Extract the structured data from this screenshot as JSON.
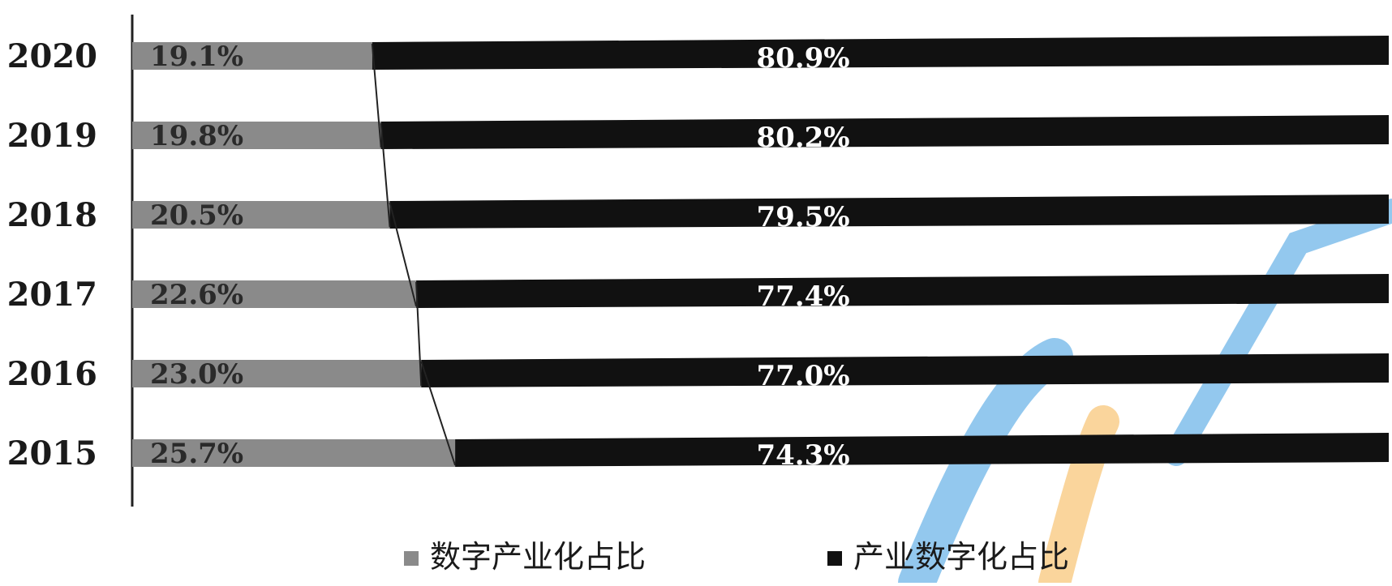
{
  "chart_data": {
    "type": "bar",
    "orientation": "horizontal",
    "stacked": "percent",
    "categories": [
      "2020",
      "2019",
      "2018",
      "2017",
      "2016",
      "2015"
    ],
    "series": [
      {
        "name": "数字产业化占比",
        "values": [
          19.1,
          19.8,
          20.5,
          22.6,
          23.0,
          25.7
        ],
        "labels": [
          "19.1%",
          "19.8%",
          "20.5%",
          "22.6%",
          "23.0%",
          "25.7%"
        ],
        "color": "#8a8a8a"
      },
      {
        "name": "产业数字化占比",
        "values": [
          80.9,
          80.2,
          79.5,
          77.4,
          77.0,
          74.3
        ],
        "labels": [
          "80.9%",
          "80.2%",
          "79.5%",
          "77.4%",
          "77.0%",
          "74.3%"
        ],
        "color": "#111111"
      }
    ],
    "xlim": [
      0,
      100
    ],
    "grid": false,
    "legend_position": "bottom"
  },
  "colors": {
    "segment_light": "#8a8a8a",
    "segment_dark": "#111111",
    "axis": "#222222",
    "watermark_blue": "#3a9be0",
    "watermark_orange": "#f5b34a"
  }
}
